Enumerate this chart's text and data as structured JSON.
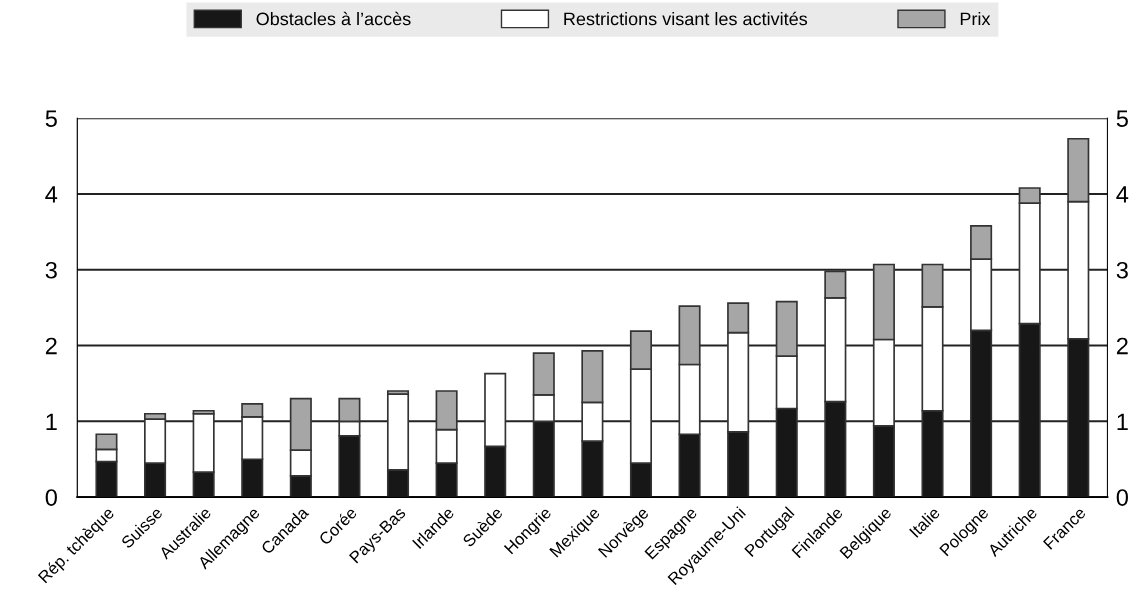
{
  "chart_data": {
    "type": "bar",
    "stacked": true,
    "categories": [
      "Rép. tchèque",
      "Suisse",
      "Australie",
      "Allemagne",
      "Canada",
      "Corée",
      "Pays-Bas",
      "Irlande",
      "Suède",
      "Hongrie",
      "Mexique",
      "Norvège",
      "Espagne",
      "Royaume-Uni",
      "Portugal",
      "Finlande",
      "Belgique",
      "Italie",
      "Pologne",
      "Autriche",
      "France"
    ],
    "series": [
      {
        "name": "Obstacles à l’accès",
        "color": "#171717",
        "values": [
          0.47,
          0.45,
          0.33,
          0.5,
          0.28,
          0.81,
          0.36,
          0.45,
          0.67,
          1.0,
          0.74,
          0.45,
          0.83,
          0.86,
          1.17,
          1.26,
          0.94,
          1.14,
          2.2,
          2.29,
          2.09
        ]
      },
      {
        "name": "Restrictions visant les activités",
        "color": "#ffffff",
        "values": [
          0.16,
          0.58,
          0.77,
          0.56,
          0.34,
          0.19,
          1.0,
          0.44,
          0.96,
          0.35,
          0.51,
          1.24,
          0.92,
          1.31,
          0.69,
          1.37,
          1.14,
          1.37,
          0.94,
          1.59,
          1.81
        ]
      },
      {
        "name": "Prix",
        "color": "#a6a6a6",
        "values": [
          0.2,
          0.07,
          0.04,
          0.17,
          0.68,
          0.3,
          0.04,
          0.51,
          null,
          0.55,
          0.68,
          0.5,
          0.77,
          0.39,
          0.72,
          0.35,
          0.99,
          0.56,
          0.44,
          0.2,
          0.83
        ]
      }
    ],
    "ylim": [
      0,
      5
    ],
    "yticks": [
      0,
      1,
      2,
      3,
      4,
      5
    ],
    "y2lim": [
      0,
      5
    ],
    "y2ticks": [
      0,
      1,
      2,
      3,
      4,
      5
    ],
    "grid": "y",
    "legend": "top"
  }
}
